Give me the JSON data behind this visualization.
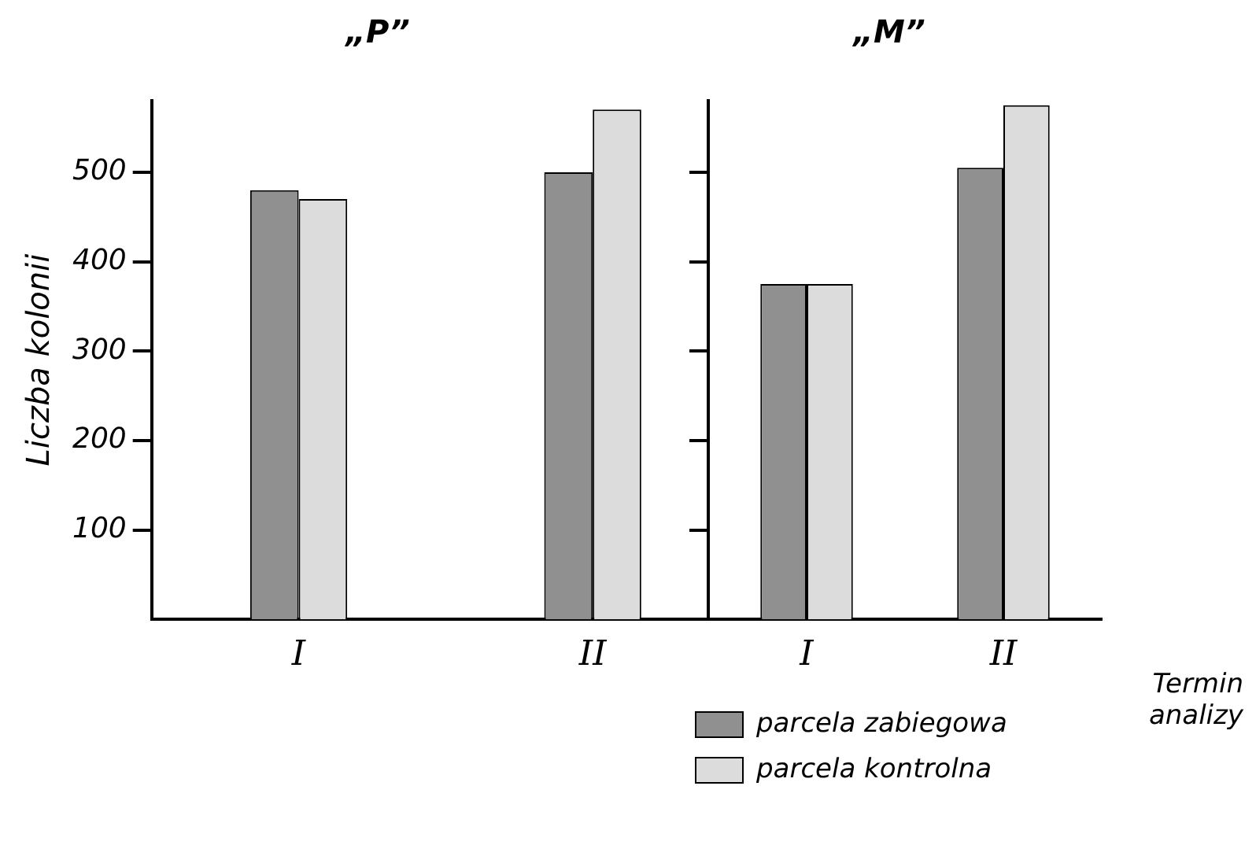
{
  "chart_data": [
    {
      "type": "bar",
      "title": "„P”",
      "ylabel": "Liczba kolonii",
      "categories": [
        "I",
        "II"
      ],
      "series": [
        {
          "color": "#909090",
          "values": [
            480,
            500
          ]
        },
        {
          "color": "#dcdcdc",
          "values": [
            470,
            570
          ]
        }
      ],
      "ylim": [
        0,
        580
      ],
      "yticks": [
        100,
        200,
        300,
        400,
        500
      ],
      "grid": false,
      "legend": false
    },
    {
      "type": "bar",
      "title": "„M”",
      "xlabel": "Termin analizy",
      "categories": [
        "I",
        "II"
      ],
      "series": [
        {
          "name": "parcela zabiegowa",
          "color": "#909090",
          "values": [
            375,
            505
          ]
        },
        {
          "name": "parcela kontrolna",
          "color": "#dcdcdc",
          "values": [
            375,
            575
          ]
        }
      ],
      "ylim": [
        0,
        580
      ],
      "yticks": [
        {
          "value": 100,
          "label": null
        },
        {
          "value": 200,
          "label": null
        },
        {
          "value": 300,
          "label": null
        },
        {
          "value": 400,
          "label": null
        },
        {
          "value": 500,
          "label": null
        }
      ],
      "tick_labels": "x",
      "grid": false,
      "legend": "bottom"
    }
  ]
}
